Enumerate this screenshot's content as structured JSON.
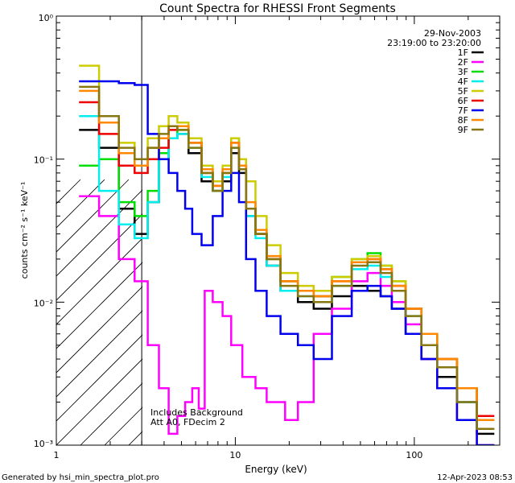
{
  "chart_data": {
    "type": "line",
    "title": "Count Spectra for RHESSI Front Segments",
    "xlabel": "Energy (keV)",
    "ylabel": "counts cm⁻² s⁻¹ keV⁻¹",
    "xscale": "log",
    "yscale": "log",
    "xlim": [
      1,
      300
    ],
    "ylim": [
      0.001,
      1
    ],
    "x_ticks": [
      {
        "value": 1,
        "label": "1"
      },
      {
        "value": 10,
        "label": "10"
      },
      {
        "value": 100,
        "label": "100"
      }
    ],
    "y_ticks": [
      {
        "value": 1,
        "label": "10⁰"
      },
      {
        "value": 0.1,
        "label": "10⁻¹"
      },
      {
        "value": 0.01,
        "label": "10⁻²"
      },
      {
        "value": 0.001,
        "label": "10⁻³"
      }
    ],
    "date": "29-Nov-2003",
    "time_range": "23:19:00 to 23:20:00",
    "excluded_region_max_energy": 3,
    "annotations": [
      "Includes Background",
      "Att A0, FDecim 2"
    ],
    "footer_left": "Generated by hsi_min_spectra_plot.pro",
    "footer_right": "12-Apr-2023 08:53",
    "legend_position": "top-right",
    "series": [
      {
        "name": "1F",
        "color": "#000000",
        "x": [
          1.5,
          2,
          2.5,
          3,
          3.5,
          4,
          4.5,
          5,
          6,
          7,
          8,
          9,
          10,
          11,
          12,
          14,
          16,
          20,
          25,
          30,
          40,
          50,
          60,
          70,
          80,
          100,
          120,
          150,
          200,
          250
        ],
        "y": [
          0.16,
          0.12,
          0.045,
          0.03,
          0.05,
          0.1,
          0.14,
          0.15,
          0.11,
          0.07,
          0.06,
          0.07,
          0.11,
          0.08,
          0.04,
          0.03,
          0.018,
          0.012,
          0.01,
          0.009,
          0.011,
          0.013,
          0.012,
          0.011,
          0.009,
          0.006,
          0.004,
          0.003,
          0.002,
          0.0012
        ]
      },
      {
        "name": "2F",
        "color": "#ff00ff",
        "x": [
          1.5,
          2,
          2.5,
          3,
          3.5,
          4,
          4.5,
          5,
          5.5,
          6,
          6.5,
          7,
          8,
          9,
          10,
          12,
          14,
          16,
          18,
          20,
          25,
          30,
          40,
          50,
          60,
          70,
          80,
          100,
          120,
          150,
          200,
          250
        ],
        "y": [
          0.055,
          0.04,
          0.02,
          0.014,
          0.005,
          0.0025,
          0.0012,
          0.0016,
          0.002,
          0.0025,
          0.0018,
          0.012,
          0.01,
          0.008,
          0.005,
          0.003,
          0.0025,
          0.002,
          0.002,
          0.0015,
          0.002,
          0.006,
          0.009,
          0.014,
          0.016,
          0.013,
          0.01,
          0.007,
          0.004,
          0.0025,
          0.0015,
          0.001
        ]
      },
      {
        "name": "3F",
        "color": "#00dd00",
        "x": [
          1.5,
          2,
          2.5,
          3,
          3.5,
          4,
          4.5,
          5,
          6,
          7,
          8,
          9,
          10,
          11,
          12,
          14,
          16,
          20,
          25,
          30,
          40,
          50,
          60,
          70,
          80,
          100,
          120,
          150,
          200,
          250
        ],
        "y": [
          0.09,
          0.1,
          0.05,
          0.04,
          0.06,
          0.11,
          0.14,
          0.16,
          0.13,
          0.08,
          0.06,
          0.08,
          0.14,
          0.09,
          0.045,
          0.03,
          0.02,
          0.014,
          0.012,
          0.011,
          0.015,
          0.02,
          0.022,
          0.018,
          0.014,
          0.009,
          0.006,
          0.004,
          0.0025,
          0.0015
        ]
      },
      {
        "name": "4F",
        "color": "#00eeee",
        "x": [
          1.5,
          2,
          2.5,
          3,
          3.5,
          4,
          4.5,
          5,
          6,
          7,
          8,
          9,
          10,
          11,
          12,
          14,
          16,
          20,
          25,
          30,
          40,
          50,
          60,
          70,
          80,
          100,
          120,
          150,
          200,
          250
        ],
        "y": [
          0.2,
          0.06,
          0.035,
          0.028,
          0.05,
          0.1,
          0.14,
          0.15,
          0.12,
          0.075,
          0.06,
          0.075,
          0.12,
          0.085,
          0.04,
          0.028,
          0.018,
          0.012,
          0.011,
          0.01,
          0.013,
          0.017,
          0.018,
          0.015,
          0.012,
          0.008,
          0.005,
          0.0035,
          0.002,
          0.0013
        ]
      },
      {
        "name": "5F",
        "color": "#cccc00",
        "x": [
          1.5,
          2,
          2.5,
          3,
          3.5,
          4,
          4.5,
          5,
          6,
          7,
          8,
          9,
          10,
          11,
          12,
          14,
          16,
          20,
          25,
          30,
          40,
          50,
          60,
          70,
          80,
          100,
          120,
          150,
          200,
          250
        ],
        "y": [
          0.45,
          0.2,
          0.13,
          0.1,
          0.14,
          0.17,
          0.2,
          0.18,
          0.14,
          0.09,
          0.07,
          0.09,
          0.14,
          0.1,
          0.07,
          0.04,
          0.025,
          0.016,
          0.013,
          0.012,
          0.015,
          0.02,
          0.021,
          0.018,
          0.014,
          0.009,
          0.006,
          0.004,
          0.0025,
          0.0015
        ]
      },
      {
        "name": "6F",
        "color": "#ee0000",
        "x": [
          1.5,
          2,
          2.5,
          3,
          3.5,
          4,
          4.5,
          5,
          6,
          7,
          8,
          9,
          10,
          11,
          12,
          14,
          16,
          20,
          25,
          30,
          40,
          50,
          60,
          70,
          80,
          100,
          120,
          150,
          200,
          250
        ],
        "y": [
          0.25,
          0.15,
          0.09,
          0.08,
          0.1,
          0.12,
          0.16,
          0.17,
          0.13,
          0.08,
          0.065,
          0.08,
          0.13,
          0.09,
          0.045,
          0.03,
          0.02,
          0.014,
          0.012,
          0.011,
          0.014,
          0.019,
          0.02,
          0.017,
          0.013,
          0.009,
          0.006,
          0.004,
          0.0025,
          0.0016
        ]
      },
      {
        "name": "7F",
        "color": "#0000ee",
        "x": [
          1.5,
          2,
          2.5,
          3,
          3.5,
          4,
          4.5,
          5,
          5.5,
          6,
          7,
          8,
          9,
          10,
          11,
          12,
          14,
          16,
          20,
          25,
          30,
          40,
          50,
          60,
          70,
          80,
          100,
          120,
          150,
          200,
          250
        ],
        "y": [
          0.35,
          0.35,
          0.34,
          0.33,
          0.15,
          0.1,
          0.08,
          0.06,
          0.045,
          0.03,
          0.025,
          0.04,
          0.06,
          0.08,
          0.05,
          0.02,
          0.012,
          0.008,
          0.006,
          0.005,
          0.004,
          0.008,
          0.012,
          0.013,
          0.011,
          0.009,
          0.006,
          0.004,
          0.0025,
          0.0015,
          0.001
        ]
      },
      {
        "name": "8F",
        "color": "#ff8800",
        "x": [
          1.5,
          2,
          2.5,
          3,
          3.5,
          4,
          4.5,
          5,
          6,
          7,
          8,
          9,
          10,
          11,
          12,
          14,
          16,
          20,
          25,
          30,
          40,
          50,
          60,
          70,
          80,
          100,
          120,
          150,
          200,
          250
        ],
        "y": [
          0.3,
          0.18,
          0.11,
          0.09,
          0.12,
          0.14,
          0.17,
          0.17,
          0.13,
          0.085,
          0.065,
          0.085,
          0.13,
          0.09,
          0.05,
          0.032,
          0.021,
          0.014,
          0.012,
          0.011,
          0.014,
          0.019,
          0.02,
          0.017,
          0.013,
          0.009,
          0.006,
          0.004,
          0.0025,
          0.0015
        ]
      },
      {
        "name": "9F",
        "color": "#887711",
        "x": [
          1.5,
          2,
          2.5,
          3,
          3.5,
          4,
          4.5,
          5,
          6,
          7,
          8,
          9,
          10,
          11,
          12,
          14,
          16,
          20,
          25,
          30,
          40,
          50,
          60,
          70,
          80,
          100,
          120,
          150,
          200,
          250
        ],
        "y": [
          0.32,
          0.2,
          0.12,
          0.1,
          0.12,
          0.15,
          0.17,
          0.16,
          0.12,
          0.08,
          0.06,
          0.08,
          0.12,
          0.085,
          0.045,
          0.03,
          0.02,
          0.013,
          0.011,
          0.01,
          0.013,
          0.018,
          0.019,
          0.016,
          0.012,
          0.008,
          0.005,
          0.0035,
          0.002,
          0.0013
        ]
      }
    ]
  }
}
